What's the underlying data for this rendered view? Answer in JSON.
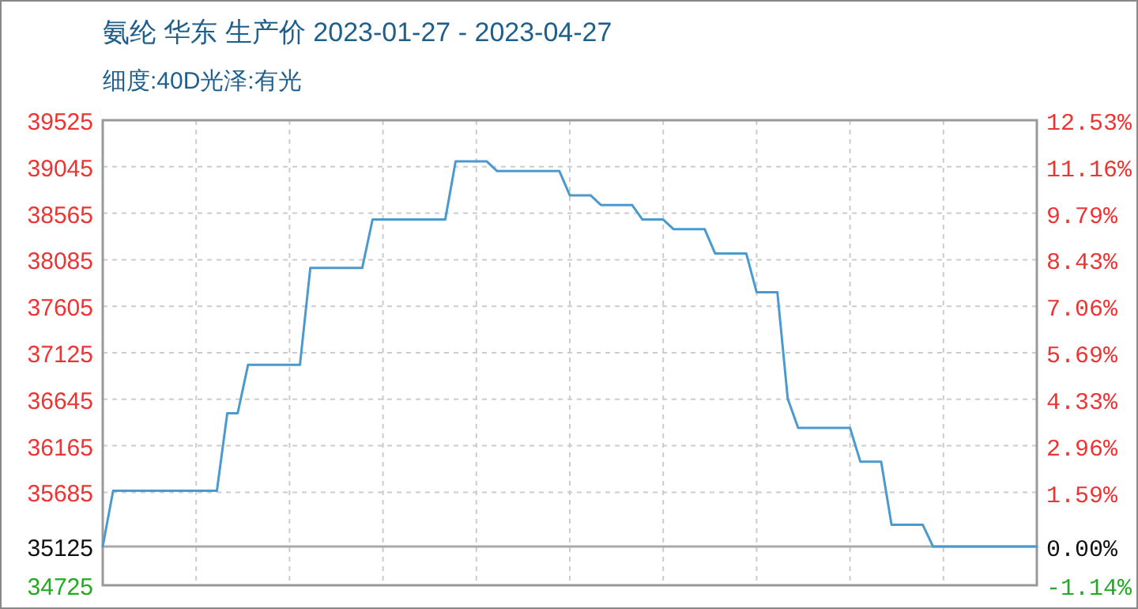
{
  "chart_data": {
    "type": "line",
    "title": "氨纶 华东 生产价 2023-01-27 - 2023-04-27",
    "subtitle": "细度:40D光泽:有光",
    "categories": [
      null,
      null,
      null,
      null,
      null,
      null,
      null,
      null,
      null,
      null,
      null,
      null,
      null,
      null,
      null,
      null,
      null,
      null,
      null,
      null,
      null,
      null,
      null,
      null,
      null,
      null,
      null,
      null,
      null,
      null,
      null,
      null,
      null,
      null,
      null,
      null,
      null,
      null,
      null,
      null,
      null,
      null,
      null,
      null,
      null,
      null,
      null,
      null,
      null,
      null,
      null,
      null,
      null,
      null,
      null,
      null,
      null,
      null,
      null,
      null,
      null,
      null,
      null,
      null,
      null,
      null,
      null,
      null,
      null,
      null,
      null,
      null,
      null,
      null,
      null,
      null,
      null,
      null,
      null,
      null,
      null,
      null,
      null,
      null,
      null,
      null,
      null,
      null,
      null,
      null,
      null
    ],
    "series": [
      {
        "color": "#4a9ad0",
        "values": [
          35125,
          35700,
          35700,
          35700,
          35700,
          35700,
          35700,
          35700,
          35700,
          35700,
          35700,
          35700,
          36500,
          36500,
          37000,
          37000,
          37000,
          37000,
          37000,
          37000,
          38000,
          38000,
          38000,
          38000,
          38000,
          38000,
          38500,
          38500,
          38500,
          38500,
          38500,
          38500,
          38500,
          38500,
          39100,
          39100,
          39100,
          39100,
          39000,
          39000,
          39000,
          39000,
          39000,
          39000,
          39000,
          38750,
          38750,
          38750,
          38650,
          38650,
          38650,
          38650,
          38500,
          38500,
          38500,
          38400,
          38400,
          38400,
          38400,
          38150,
          38150,
          38150,
          38150,
          37750,
          37750,
          37750,
          36650,
          36350,
          36350,
          36350,
          36350,
          36350,
          36350,
          36000,
          36000,
          36000,
          35350,
          35350,
          35350,
          35350,
          35125,
          35125,
          35125,
          35125,
          35125,
          35125,
          35125,
          35125,
          35125,
          35125,
          35125
        ]
      }
    ],
    "ylim": [
      34725,
      39525
    ],
    "yticks": [
      34725,
      35125,
      35685,
      36165,
      36645,
      37125,
      37605,
      38085,
      38565,
      39045,
      39525
    ],
    "y2lim": [
      -1.14,
      12.53
    ],
    "y2ticks": [
      {
        "value": -1.14,
        "label": "-1.14%"
      },
      {
        "value": 0,
        "label": "0.00%"
      },
      {
        "value": 1.59,
        "label": "1.59%"
      },
      {
        "value": 2.96,
        "label": "2.96%"
      },
      {
        "value": 4.33,
        "label": "4.33%"
      },
      {
        "value": 5.69,
        "label": "5.69%"
      },
      {
        "value": 7.06,
        "label": "7.06%"
      },
      {
        "value": 8.43,
        "label": "8.43%"
      },
      {
        "value": 9.79,
        "label": "9.79%"
      },
      {
        "value": 11.16,
        "label": "11.16%"
      },
      {
        "value": 12.53,
        "label": "12.53%"
      }
    ],
    "ref_lines": [
      {
        "axis": "y2",
        "value": 0,
        "color": "#aaaaaa",
        "line_style": "solid"
      }
    ],
    "grid": true,
    "marker": "none",
    "line_style": "solid"
  }
}
